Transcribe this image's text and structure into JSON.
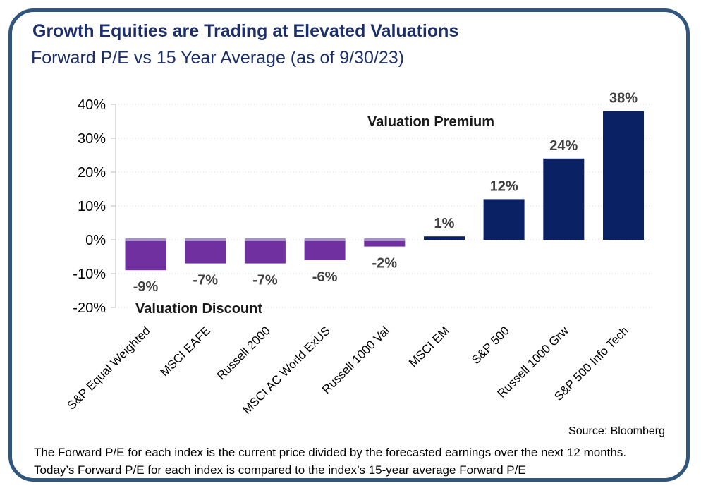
{
  "header": {
    "title": "Growth Equities are Trading at Elevated Valuations",
    "subtitle": "Forward P/E vs 15 Year Average (as of 9/30/23)"
  },
  "chart_data": {
    "type": "bar",
    "categories": [
      "S&P Equal Weighted",
      "MSCI EAFE",
      "Russell 2000",
      "MSCI AC World ExUS",
      "Russell 1000 Val",
      "MSCI EM",
      "S&P 500",
      "Russell 1000 Grw",
      "S&P 500 Info Tech"
    ],
    "values": [
      -9,
      -7,
      -7,
      -6,
      -2,
      1,
      12,
      24,
      38
    ],
    "bar_labels": [
      "-9%",
      "-7%",
      "-7%",
      "-6%",
      "-2%",
      "1%",
      "12%",
      "24%",
      "38%"
    ],
    "yticks": [
      "40%",
      "30%",
      "20%",
      "10%",
      "0%",
      "-10%",
      "-20%"
    ],
    "ytick_values": [
      40,
      30,
      20,
      10,
      0,
      -10,
      -20
    ],
    "ylim": [
      -20,
      40
    ],
    "grid": "horizontal-dotted",
    "legend": "none",
    "annotations": {
      "premium": "Valuation Premium",
      "discount": "Valuation Discount"
    },
    "colors": {
      "positive_bar": "#0a2163",
      "negative_bar": "#7030a0",
      "negative_bar_top": "#a78fcb",
      "gridline": "#d9d9d9",
      "axis_line": "#bfbfbf",
      "value_label": "#404040",
      "title": "#1c2f6b",
      "frame_border": "#31567e"
    }
  },
  "source": "Source: Bloomberg",
  "footnote": {
    "line1": "The Forward P/E for each index is the current price divided by the forecasted earnings over the next 12 months.",
    "line2": "Today’s Forward P/E for each index is compared to the index’s 15-year average Forward P/E"
  }
}
